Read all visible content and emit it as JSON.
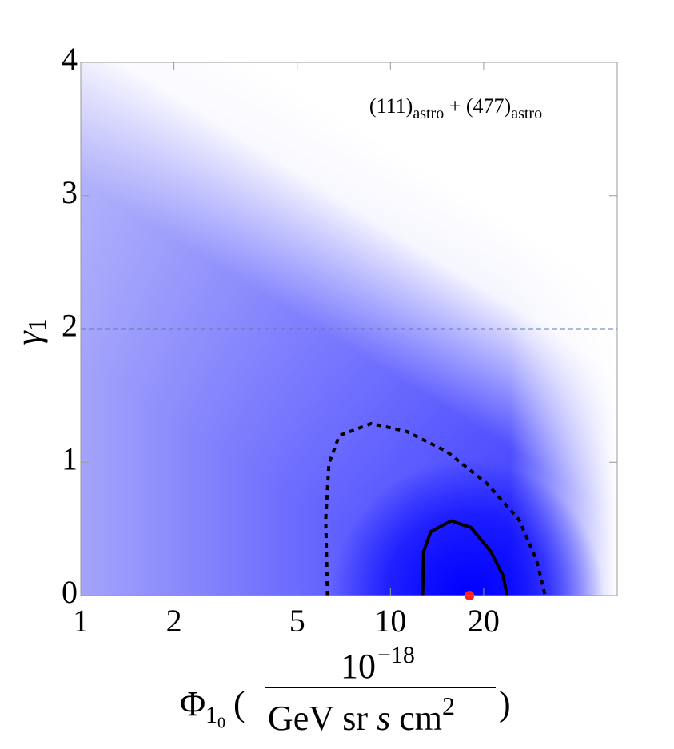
{
  "chart_data": {
    "type": "contour",
    "annotation": [
      "(111)",
      "astro",
      " + (477)",
      "astro"
    ],
    "x_label": {
      "symbol": "Φ",
      "sub": "1",
      "subsub": "0",
      "open": "(",
      "numerator": "10",
      "numerator_exp": "−18",
      "denominator_a": "GeV sr",
      "denominator_s": "s",
      "denominator_b": "cm",
      "denominator_exp": "2",
      "close": ")"
    },
    "y_label": {
      "symbol": "γ",
      "sub": "1"
    },
    "x_scale": "log",
    "xlim": [
      1,
      54
    ],
    "xticks": [
      1,
      2,
      5,
      10,
      20
    ],
    "ylim": [
      0,
      4
    ],
    "yticks": [
      0,
      1,
      2,
      3,
      4
    ],
    "series": [
      {
        "color": "#000000",
        "style": "dashed",
        "x": [
          6.26,
          6.18,
          6.33,
          6.84,
          8.67,
          11.3,
          15.2,
          20.5,
          26.0,
          29.6,
          31.6
        ],
        "values": [
          0,
          0.57,
          0.99,
          1.2,
          1.29,
          1.23,
          1.08,
          0.84,
          0.57,
          0.27,
          0
        ]
      },
      {
        "color": "#000000",
        "style": "solid",
        "x": [
          12.7,
          12.8,
          13.5,
          15.7,
          18.2,
          21.1,
          23.1,
          23.8
        ],
        "values": [
          0,
          0.33,
          0.48,
          0.56,
          0.51,
          0.33,
          0.15,
          0
        ]
      }
    ],
    "best_fit": {
      "x": 18,
      "y": 0,
      "color": "#ff2020"
    },
    "reference_line": {
      "y": 2,
      "color": "#5b7fa8",
      "style": "dashed"
    }
  }
}
